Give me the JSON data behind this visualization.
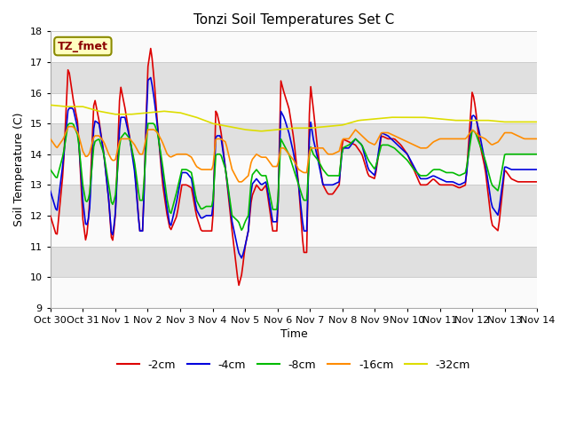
{
  "title": "Tonzi Soil Temperatures Set C",
  "xlabel": "Time",
  "ylabel": "Soil Temperature (C)",
  "ylim": [
    9.0,
    18.0
  ],
  "yticks": [
    9.0,
    10.0,
    11.0,
    12.0,
    13.0,
    14.0,
    15.0,
    16.0,
    17.0,
    18.0
  ],
  "xtick_labels": [
    "Oct 30",
    "Oct 31",
    "Nov 1",
    "Nov 2",
    "Nov 3",
    "Nov 4",
    "Nov 5",
    "Nov 6",
    "Nov 7",
    "Nov 8",
    "Nov 9",
    "Nov 10",
    "Nov 11",
    "Nov 12",
    "Nov 13",
    "Nov 14"
  ],
  "annotation": "TZ_fmet",
  "annotation_color": "#8B0000",
  "annotation_bg": "#FFFFC0",
  "annotation_border": "#8B8B00",
  "colors": {
    "-2cm": "#DD0000",
    "-4cm": "#0000DD",
    "-8cm": "#00BB00",
    "-16cm": "#FF8C00",
    "-32cm": "#DDDD00"
  },
  "line_width": 1.2,
  "bg_band_color": "#E0E0E0",
  "bg_white_color": "#F5F5F5"
}
